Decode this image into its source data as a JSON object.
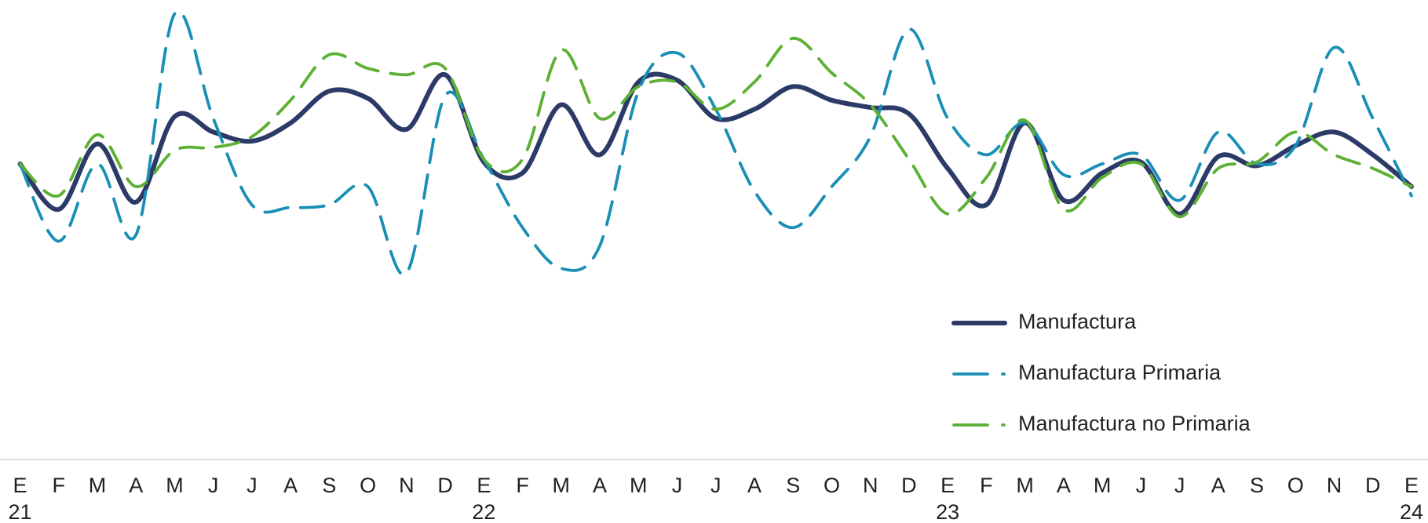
{
  "chart_data": {
    "type": "line",
    "categories": [
      "E",
      "F",
      "M",
      "A",
      "M",
      "J",
      "J",
      "A",
      "S",
      "O",
      "N",
      "D",
      "E",
      "F",
      "M",
      "A",
      "M",
      "J",
      "J",
      "A",
      "S",
      "O",
      "N",
      "D",
      "E",
      "F",
      "M",
      "A",
      "M",
      "J",
      "J",
      "A",
      "S",
      "O",
      "N",
      "D",
      "E"
    ],
    "year_labels": [
      "21",
      null,
      null,
      null,
      null,
      null,
      null,
      null,
      null,
      null,
      null,
      null,
      "22",
      null,
      null,
      null,
      null,
      null,
      null,
      null,
      null,
      null,
      null,
      null,
      "23",
      null,
      null,
      null,
      null,
      null,
      null,
      null,
      null,
      null,
      null,
      null,
      "24"
    ],
    "ylim": [
      0,
      100
    ],
    "legend": "lower right",
    "series": [
      {
        "name": "Manufactura",
        "color": "#2b3a67",
        "dash": "solid",
        "values": [
          65,
          55,
          69.4,
          56.6,
          75.4,
          72,
          70,
          74,
          81,
          79.4,
          72.6,
          84.6,
          65.4,
          63,
          78,
          67,
          83,
          83.4,
          75,
          77,
          82,
          79,
          77.4,
          76,
          64,
          56,
          74,
          57,
          63,
          65.4,
          54,
          66.6,
          64.6,
          69,
          72,
          67,
          60
        ]
      },
      {
        "name": "Manufactura Primaria",
        "color": "#1a8fb5",
        "dash": "dashed",
        "values": [
          65,
          48,
          65,
          49.4,
          98,
          75,
          56,
          55.4,
          56,
          60,
          41,
          80,
          66,
          51,
          42,
          47,
          81,
          89.4,
          77,
          59,
          51,
          60,
          71,
          94.6,
          75,
          67,
          74,
          62.6,
          65,
          67,
          57,
          72,
          65,
          69,
          90.6,
          75,
          58
        ]
      },
      {
        "name": "Manufactura no Primaria",
        "color": "#5cb033",
        "dash": "dashed",
        "values": [
          65,
          58,
          71.4,
          60,
          68,
          68.6,
          71,
          79,
          89,
          86,
          84.6,
          86,
          66,
          66,
          90,
          75,
          82,
          83,
          77,
          83,
          92.6,
          85,
          78,
          66,
          54,
          62,
          74.6,
          55,
          62,
          65,
          53.4,
          64,
          65.4,
          72,
          67,
          64,
          60
        ]
      }
    ]
  }
}
